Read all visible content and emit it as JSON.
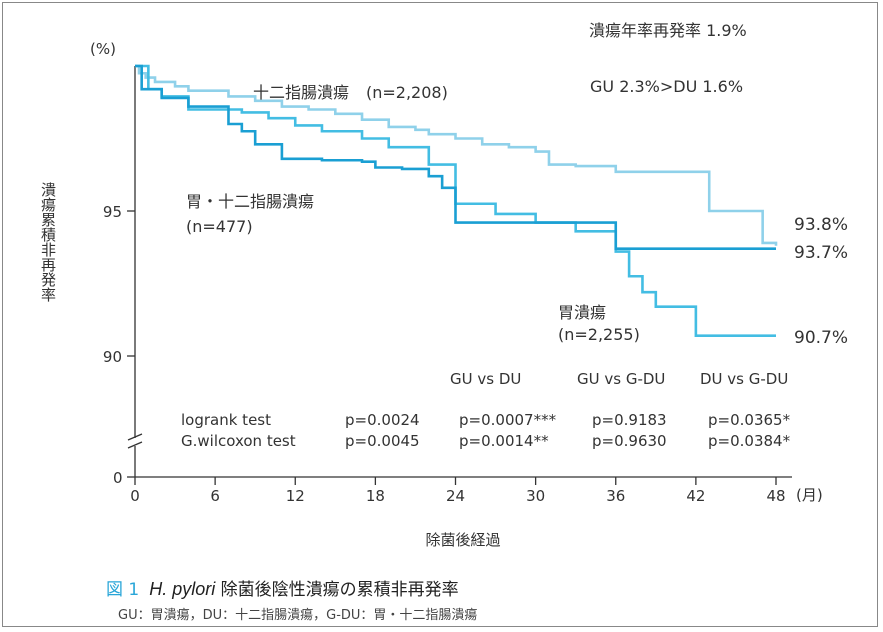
{
  "chart_data": {
    "type": "line",
    "ylabel": "潰瘍累積非再発率",
    "y_unit": "(%)",
    "xlabel": "除菌後経過",
    "x_unit": "(月)",
    "x_ticks": [
      0,
      6,
      12,
      18,
      24,
      30,
      36,
      42,
      48
    ],
    "y_ticks": [
      90,
      95
    ],
    "y_zero_label": "0",
    "xlim": [
      0,
      48
    ],
    "ylim": [
      88,
      100
    ],
    "axis_break": true,
    "series": [
      {
        "name": "十二指腸潰瘍",
        "n_label": "(n=2,208)",
        "end_label": "93.8%",
        "color": "#8fd1ea",
        "x": [
          0,
          0.3,
          0.8,
          1.5,
          3,
          4,
          7,
          9,
          11,
          13,
          15,
          17,
          19,
          21,
          22,
          24,
          26,
          28,
          30,
          31,
          33,
          36,
          38,
          42,
          43,
          47,
          48
        ],
        "y": [
          100,
          99.75,
          99.6,
          99.45,
          99.3,
          99.15,
          98.95,
          98.8,
          98.6,
          98.5,
          98.35,
          98.15,
          97.9,
          97.8,
          97.65,
          97.5,
          97.3,
          97.2,
          97.05,
          96.6,
          96.55,
          96.35,
          96.35,
          96.35,
          95.0,
          93.9,
          93.8
        ]
      },
      {
        "name": "胃・十二指腸潰瘍",
        "n_label": "(n=477)",
        "end_label": "93.7%",
        "color": "#1a9fd3",
        "x": [
          0,
          0.5,
          2,
          4,
          7,
          8,
          9,
          11,
          14,
          17,
          18,
          20,
          22,
          23,
          24,
          36,
          42,
          48
        ],
        "y": [
          100,
          99.2,
          98.9,
          98.6,
          98.0,
          97.75,
          97.3,
          96.8,
          96.75,
          96.7,
          96.5,
          96.45,
          96.2,
          95.8,
          94.6,
          93.7,
          93.7,
          93.7
        ]
      },
      {
        "name": "胃潰瘍",
        "n_label": "(n=2,255)",
        "end_label": "90.7%",
        "color": "#43bde3",
        "x": [
          0,
          1,
          2,
          4,
          8,
          10,
          12,
          14,
          17,
          19,
          22,
          24,
          27,
          30,
          33,
          36,
          37,
          38,
          39,
          42,
          48
        ],
        "y": [
          100,
          99.2,
          98.95,
          98.5,
          98.4,
          98.2,
          97.95,
          97.75,
          97.5,
          97.2,
          96.6,
          95.25,
          94.9,
          94.6,
          94.3,
          93.6,
          92.75,
          92.2,
          91.7,
          90.7,
          90.7
        ]
      }
    ],
    "annotations": {
      "overall": "潰瘍年率再発率 1.9%",
      "compare": "GU 2.3%>DU 1.6%"
    },
    "stats": {
      "columns": [
        "",
        "",
        "GU vs DU",
        "GU vs G-DU",
        "DU vs G-DU"
      ],
      "rows": [
        [
          "logrank test",
          "p=0.0024",
          "p=0.0007***",
          "p=0.9183",
          "p=0.0365*"
        ],
        [
          "G.wilcoxon test",
          "p=0.0045",
          "p=0.0014**",
          "p=0.9630",
          "p=0.0384*"
        ]
      ]
    }
  },
  "caption": {
    "fig_label": "図 1",
    "title_italic": "H. pylori",
    "title_rest": " 除菌後陰性潰瘍の累積非再発率",
    "abbrev": "GU：胃潰瘍，DU：十二指腸潰瘍，G-DU：胃・十二指腸潰瘍"
  }
}
